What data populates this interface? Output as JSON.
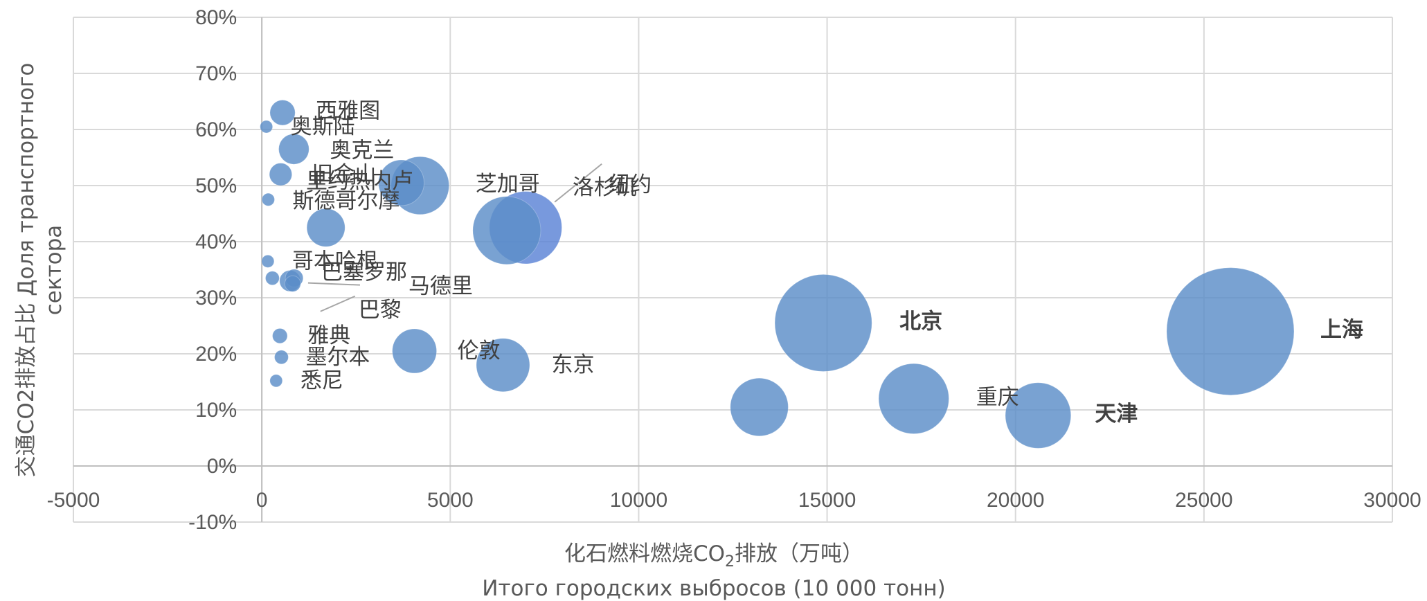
{
  "chart_data": {
    "type": "bubble",
    "title": "",
    "xlabel_cn": "化石燃料燃烧CO",
    "xlabel_sub": "2",
    "xlabel_cn_tail": "排放（万吨）",
    "xlabel_ru": "Итого городских выбросов (10 000 тонн)",
    "ylabel_line1": "交通CO2排放占比 Доля транспортного",
    "ylabel_line2": "сектора",
    "xlim": [
      -5000,
      30000
    ],
    "ylim": [
      -0.1,
      0.8
    ],
    "x_ticks": [
      "-5000",
      "0",
      "5000",
      "10000",
      "15000",
      "20000",
      "25000",
      "30000"
    ],
    "x_tick_values": [
      -5000,
      0,
      5000,
      10000,
      15000,
      20000,
      25000,
      30000
    ],
    "y_ticks": [
      "-10%",
      "0%",
      "10%",
      "20%",
      "30%",
      "40%",
      "50%",
      "60%",
      "70%",
      "80%"
    ],
    "y_tick_values": [
      -0.1,
      0,
      0.1,
      0.2,
      0.3,
      0.4,
      0.5,
      0.6,
      0.7,
      0.8
    ],
    "grid": true,
    "bubble_color": "#5b8ec8",
    "highlight_color": "#5a82d6",
    "label_color": "#404040",
    "points": [
      {
        "label": "上海",
        "x": 25700,
        "y": 0.24,
        "size": 25700,
        "bold": true
      },
      {
        "label": "北京",
        "x": 14900,
        "y": 0.255,
        "size": 14900,
        "bold": true
      },
      {
        "label": "天津",
        "x": 20600,
        "y": 0.09,
        "size": 6800,
        "bold": true
      },
      {
        "label": "重庆",
        "x": 17300,
        "y": 0.12,
        "size": 7800,
        "bold": false
      },
      {
        "label": "",
        "x": 13200,
        "y": 0.105,
        "size": 5300,
        "bold": false
      },
      {
        "label": "东京",
        "x": 6400,
        "y": 0.18,
        "size": 4500,
        "bold": false
      },
      {
        "label": "伦敦",
        "x": 4050,
        "y": 0.205,
        "size": 3100,
        "bold": false
      },
      {
        "label": "纽约",
        "x": 7000,
        "y": 0.425,
        "size": 8300,
        "bold": false
      },
      {
        "label": "洛杉矶",
        "x": 6500,
        "y": 0.42,
        "size": 7300,
        "bold": false
      },
      {
        "label": "芝加哥",
        "x": 4200,
        "y": 0.5,
        "size": 5300,
        "bold": false
      },
      {
        "label": "里约热内卢",
        "x": 3700,
        "y": 0.505,
        "size": 3300,
        "bold": false
      },
      {
        "label": "西雅图",
        "x": 550,
        "y": 0.63,
        "size": 1000,
        "bold": false
      },
      {
        "label": "奥斯陆",
        "x": 120,
        "y": 0.605,
        "size": 200,
        "bold": false
      },
      {
        "label": "奥克兰",
        "x": 850,
        "y": 0.565,
        "size": 1450,
        "bold": false
      },
      {
        "label": "旧金山",
        "x": 500,
        "y": 0.52,
        "size": 800,
        "bold": false
      },
      {
        "label": "斯德哥尔摩",
        "x": 170,
        "y": 0.475,
        "size": 250,
        "bold": false
      },
      {
        "label": "",
        "x": 1700,
        "y": 0.425,
        "size": 2300,
        "bold": false
      },
      {
        "label": "哥本哈根",
        "x": 160,
        "y": 0.365,
        "size": 200,
        "bold": false
      },
      {
        "label": "",
        "x": 280,
        "y": 0.335,
        "size": 300,
        "bold": false
      },
      {
        "label": "巴塞罗那",
        "x": 750,
        "y": 0.33,
        "size": 700,
        "bold": false
      },
      {
        "label": "马德里",
        "x": 860,
        "y": 0.335,
        "size": 500,
        "bold": false
      },
      {
        "label": "巴黎",
        "x": 820,
        "y": 0.325,
        "size": 400,
        "bold": false
      },
      {
        "label": "雅典",
        "x": 480,
        "y": 0.232,
        "size": 350,
        "bold": false
      },
      {
        "label": "墨尔本",
        "x": 520,
        "y": 0.194,
        "size": 300,
        "bold": false
      },
      {
        "label": "悉尼",
        "x": 380,
        "y": 0.152,
        "size": 160,
        "bold": false
      }
    ]
  }
}
